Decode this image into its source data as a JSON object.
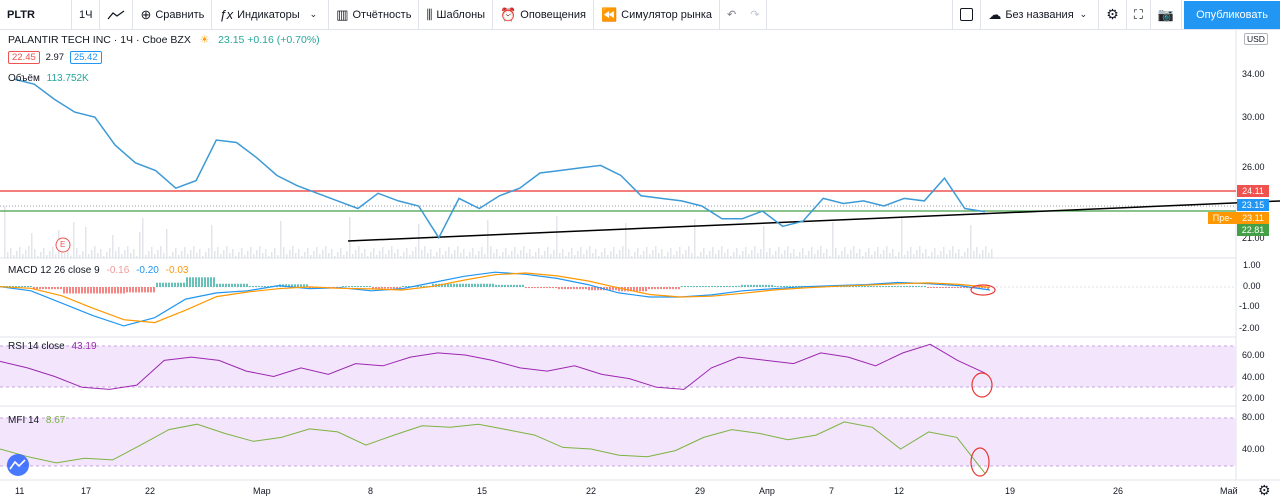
{
  "toolbar": {
    "symbol": "PLTR",
    "interval": "1Ч",
    "compare": "Сравнить",
    "indicators": "Индикаторы",
    "report": "Отчётность",
    "templates": "Шаблоны",
    "alerts": "Оповещения",
    "replay": "Симулятор рынка",
    "layout_name": "Без названия",
    "publish": "Опубликовать"
  },
  "legend": {
    "title": "PALANTIR TECH INC · 1Ч · Cboe BZX",
    "price": "23.15",
    "change": "+0.16 (+0.70%)",
    "bid": "22.45",
    "spread": "2.97",
    "ask": "25.42",
    "volume_label": "Объём",
    "volume_value": "113.752K",
    "macd_label": "MACD 12 26 close 9",
    "macd_v1": "-0.16",
    "macd_v2": "-0.20",
    "macd_v3": "-0.03",
    "rsi_label": "RSI 14 close",
    "rsi_value": "43.19",
    "mfi_label": "MFI 14",
    "mfi_value": "8.67",
    "earnings_marker": "E",
    "currency": "USD"
  },
  "price_axis": [
    "34.00",
    "30.00",
    "26.00",
    "21.00"
  ],
  "macd_axis": [
    "1.00",
    "0.00",
    "-1.00",
    "-2.00"
  ],
  "rsi_axis": [
    "60.00",
    "40.00",
    "20.00"
  ],
  "mfi_axis": [
    "80.00",
    "40.00"
  ],
  "price_tags": [
    {
      "label": "24.11",
      "color": "#ef5350"
    },
    {
      "label": "23.15",
      "color": "#2196f3"
    },
    {
      "label": "23.11",
      "color": "#ff9800",
      "prefix": "Пре-"
    },
    {
      "label": "22.81",
      "color": "#43a047"
    }
  ],
  "time_axis": [
    "11",
    "17",
    "22",
    "Мар",
    "8",
    "15",
    "22",
    "29",
    "Апр",
    "7",
    "12",
    "19",
    "26",
    "Май"
  ],
  "chart_data": {
    "type": "line",
    "price_series": [
      33.6,
      33.2,
      32.0,
      31.0,
      30.6,
      28.4,
      27.0,
      26.4,
      25.0,
      25.6,
      28.8,
      28.6,
      27.4,
      26.0,
      25.2,
      24.6,
      24.0,
      23.4,
      24.6,
      24.0,
      23.6,
      21.1,
      24.2,
      23.4,
      24.4,
      25.0,
      26.2,
      26.4,
      26.6,
      26.8,
      26.0,
      24.4,
      24.2,
      24.0,
      23.6,
      22.6,
      22.6,
      23.2,
      22.0,
      22.4,
      24.2,
      23.8,
      24.0,
      23.6,
      24.2,
      24.0,
      25.8,
      23.4,
      23.15
    ],
    "macd_series": [
      0.0,
      -0.2,
      -0.8,
      -1.4,
      -1.9,
      -1.5,
      -0.6,
      -0.3,
      -0.2,
      0.05,
      -0.1,
      -0.05,
      -0.2,
      -0.1,
      0.2,
      0.5,
      0.7,
      0.6,
      0.4,
      0.1,
      -0.3,
      -0.5,
      -0.5,
      -0.4,
      -0.2,
      -0.1,
      0.0,
      0.05,
      0.1,
      0.2,
      0.15,
      0.05,
      -0.16
    ],
    "rsi_series": [
      54,
      48,
      40,
      30,
      28,
      32,
      55,
      58,
      55,
      45,
      40,
      48,
      42,
      52,
      50,
      58,
      62,
      60,
      55,
      48,
      45,
      50,
      42,
      38,
      30,
      28,
      48,
      58,
      55,
      52,
      62,
      58,
      50,
      62,
      70,
      55,
      43.19
    ],
    "mfi_series": [
      40,
      30,
      22,
      28,
      26,
      45,
      65,
      72,
      60,
      50,
      55,
      66,
      62,
      45,
      58,
      70,
      68,
      72,
      65,
      58,
      42,
      40,
      32,
      30,
      38,
      55,
      65,
      60,
      52,
      58,
      75,
      68,
      40,
      62,
      55,
      8.67
    ]
  }
}
